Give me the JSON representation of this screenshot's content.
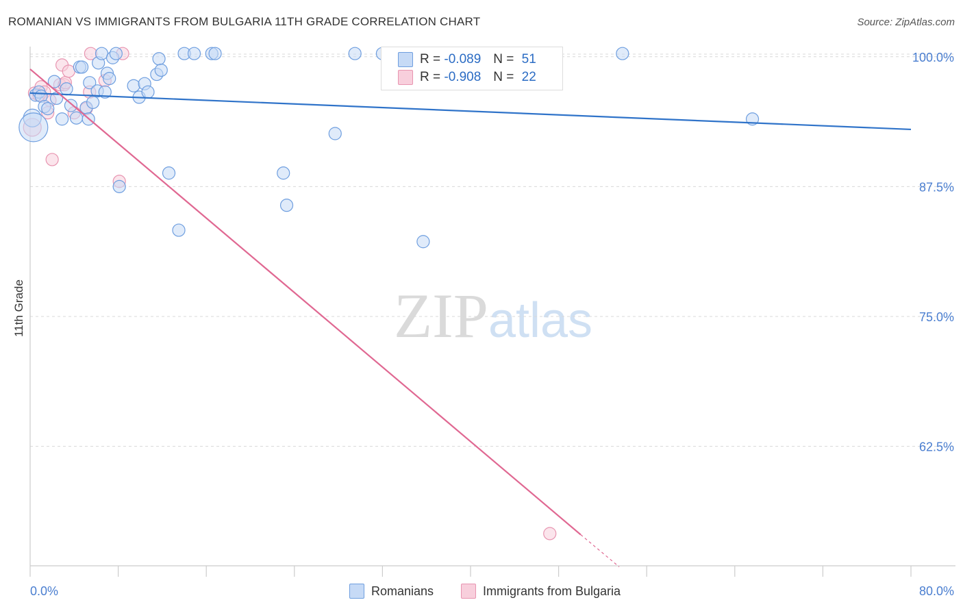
{
  "title": "ROMANIAN VS IMMIGRANTS FROM BULGARIA 11TH GRADE CORRELATION CHART",
  "source": "Source: ZipAtlas.com",
  "colors": {
    "blue": "#2f73c9",
    "blue_fill": "#c6daf6",
    "pink": "#e06892",
    "pink_fill": "#f8cfdc",
    "axis_text": "#4a7ed0",
    "grid": "#d8d8d8"
  },
  "legend": {
    "r1_label": "R =",
    "r1_value": "-0.089",
    "n1_label": "N =",
    "n1_value": "51",
    "r2_label": "R =",
    "r2_value": "-0.908",
    "n2_label": "N =",
    "n2_value": "22"
  },
  "bottom_legend": {
    "series1": "Romanians",
    "series2": "Immigrants from Bulgaria"
  },
  "watermark": {
    "part1": "ZIP",
    "part2": "atlas"
  },
  "chart_data": {
    "type": "scatter",
    "title": "ROMANIAN VS IMMIGRANTS FROM BULGARIA 11TH GRADE CORRELATION CHART",
    "xlabel": "",
    "ylabel": "11th Grade",
    "xlim": [
      0,
      80
    ],
    "ylim": [
      51.0,
      101.5
    ],
    "x_tick_labels": [
      "0.0%",
      "80.0%"
    ],
    "y_ticks": [
      100.0,
      87.5,
      75.0,
      62.5
    ],
    "y_tick_labels": [
      "100.0%",
      "87.5%",
      "75.0%",
      "62.5%"
    ],
    "grid": "horizontal dashed",
    "legend_position": "top-center",
    "series": [
      {
        "name": "Romanians",
        "color": "#2f73c9",
        "R": -0.089,
        "N": 51,
        "trend": {
          "x": [
            0,
            80
          ],
          "y": [
            96.5,
            93.0
          ]
        },
        "points": [
          [
            0.2,
            94.1,
            14
          ],
          [
            0.3,
            93.2,
            22
          ],
          [
            0.5,
            96.3,
            10
          ],
          [
            0.8,
            96.6,
            10
          ],
          [
            1.0,
            96.2,
            10
          ],
          [
            1.3,
            95.2,
            10
          ],
          [
            1.6,
            95.0,
            10
          ],
          [
            2.2,
            97.6,
            10
          ],
          [
            2.4,
            96.0,
            10
          ],
          [
            2.9,
            94.0,
            10
          ],
          [
            3.3,
            96.9,
            10
          ],
          [
            3.7,
            95.3,
            10
          ],
          [
            4.2,
            94.1,
            10
          ],
          [
            4.5,
            99.0,
            10
          ],
          [
            4.7,
            99.0,
            10
          ],
          [
            5.1,
            95.1,
            10
          ],
          [
            5.3,
            94.0,
            10
          ],
          [
            5.4,
            97.5,
            10
          ],
          [
            5.7,
            95.6,
            10
          ],
          [
            6.1,
            96.7,
            10
          ],
          [
            6.2,
            99.4,
            10
          ],
          [
            6.5,
            100.3,
            10
          ],
          [
            6.8,
            96.6,
            10
          ],
          [
            7.0,
            98.4,
            10
          ],
          [
            7.2,
            97.9,
            10
          ],
          [
            7.5,
            99.9,
            10
          ],
          [
            7.8,
            100.3,
            10
          ],
          [
            8.1,
            87.5,
            10
          ],
          [
            9.4,
            97.2,
            10
          ],
          [
            9.9,
            96.1,
            10
          ],
          [
            10.4,
            97.4,
            10
          ],
          [
            10.7,
            96.6,
            10
          ],
          [
            11.5,
            98.3,
            10
          ],
          [
            11.7,
            99.8,
            10
          ],
          [
            11.9,
            98.7,
            10
          ],
          [
            12.6,
            88.8,
            10
          ],
          [
            13.5,
            83.3,
            10
          ],
          [
            14.0,
            100.3,
            10
          ],
          [
            14.9,
            100.3,
            10
          ],
          [
            16.5,
            100.3,
            10
          ],
          [
            16.8,
            100.3,
            10
          ],
          [
            23.0,
            88.8,
            10
          ],
          [
            23.3,
            85.7,
            10
          ],
          [
            27.7,
            92.6,
            10
          ],
          [
            29.5,
            100.3,
            10
          ],
          [
            32.0,
            100.3,
            10
          ],
          [
            35.7,
            82.2,
            10
          ],
          [
            53.8,
            100.3,
            10
          ],
          [
            65.6,
            94.0,
            10
          ]
        ]
      },
      {
        "name": "Immigrants from Bulgaria",
        "color": "#e06892",
        "R": -0.908,
        "N": 22,
        "trend": {
          "x": [
            0,
            50
          ],
          "y": [
            98.8,
            54.0
          ]
        },
        "trend_dashed_to": {
          "x": 53.5,
          "y": 50.9
        },
        "points": [
          [
            0.2,
            93.2,
            14
          ],
          [
            0.4,
            96.5,
            10
          ],
          [
            0.8,
            96.3,
            10
          ],
          [
            1.0,
            97.1,
            10
          ],
          [
            1.3,
            96.6,
            10
          ],
          [
            1.6,
            94.6,
            10
          ],
          [
            1.8,
            95.8,
            10
          ],
          [
            2.0,
            90.1,
            10
          ],
          [
            2.7,
            97.3,
            10
          ],
          [
            2.9,
            99.2,
            10
          ],
          [
            3.1,
            97.3,
            10
          ],
          [
            3.2,
            97.5,
            10
          ],
          [
            3.5,
            98.6,
            10
          ],
          [
            4.0,
            94.6,
            10
          ],
          [
            5.1,
            95.0,
            10
          ],
          [
            5.4,
            96.6,
            10
          ],
          [
            5.5,
            100.3,
            10
          ],
          [
            6.8,
            97.7,
            10
          ],
          [
            8.1,
            88.0,
            10
          ],
          [
            8.4,
            100.3,
            10
          ],
          [
            47.2,
            54.1,
            10
          ]
        ]
      }
    ]
  }
}
